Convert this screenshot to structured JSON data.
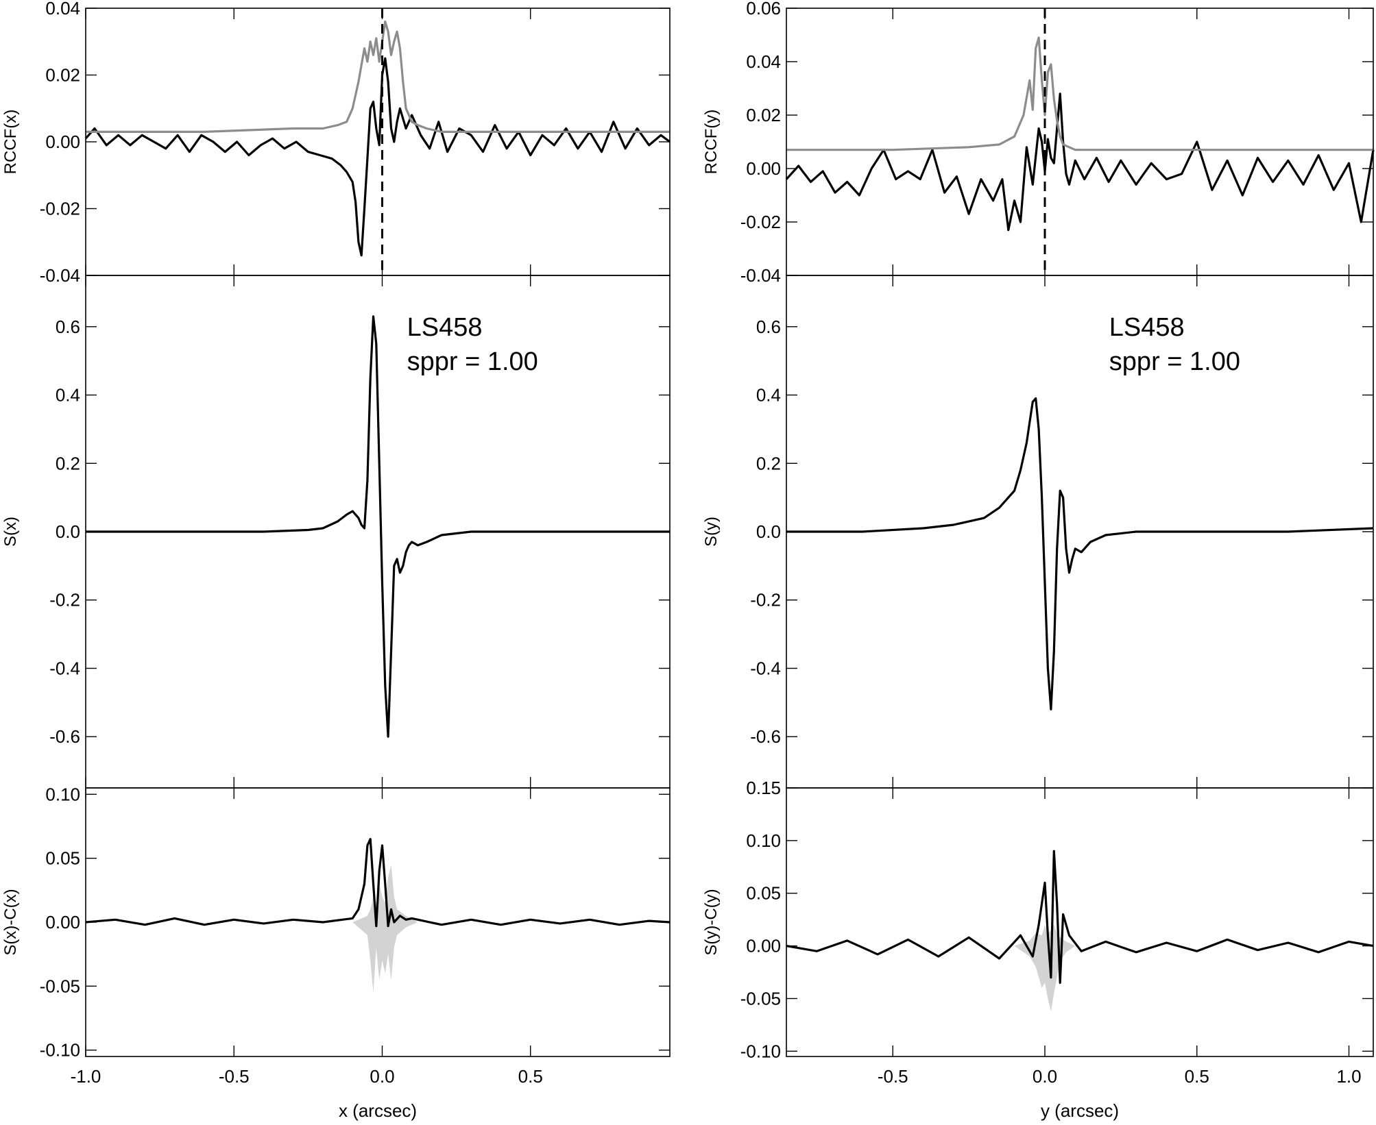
{
  "chart_data": [
    {
      "type": "line",
      "panel": "left-top",
      "ylabel": "RCCF(x)",
      "xlim": [
        -1.0,
        0.97
      ],
      "ylim": [
        -0.04,
        0.04
      ],
      "y_ticks": [
        -0.04,
        -0.02,
        0.0,
        0.02,
        0.04
      ],
      "y_tick_labels": [
        "-0.04",
        "-0.02",
        "0.00",
        "0.02",
        "0.04"
      ],
      "vline_x": 0.0,
      "series": [
        {
          "color": "#000000",
          "x": [
            -1.0,
            -0.97,
            -0.93,
            -0.89,
            -0.85,
            -0.81,
            -0.77,
            -0.73,
            -0.69,
            -0.65,
            -0.61,
            -0.57,
            -0.53,
            -0.49,
            -0.45,
            -0.41,
            -0.37,
            -0.33,
            -0.29,
            -0.25,
            -0.21,
            -0.17,
            -0.14,
            -0.12,
            -0.1,
            -0.09,
            -0.08,
            -0.07,
            -0.06,
            -0.05,
            -0.04,
            -0.03,
            -0.02,
            -0.01,
            0.0,
            0.01,
            0.02,
            0.03,
            0.04,
            0.05,
            0.06,
            0.08,
            0.1,
            0.13,
            0.16,
            0.19,
            0.22,
            0.26,
            0.3,
            0.34,
            0.38,
            0.42,
            0.46,
            0.5,
            0.54,
            0.58,
            0.62,
            0.66,
            0.7,
            0.74,
            0.78,
            0.82,
            0.86,
            0.9,
            0.94,
            0.97
          ],
          "y": [
            0.001,
            0.004,
            -0.001,
            0.002,
            -0.001,
            0.002,
            0.0,
            -0.002,
            0.002,
            -0.003,
            0.002,
            0.0,
            -0.003,
            0.0,
            -0.004,
            -0.001,
            0.001,
            -0.002,
            0.0,
            -0.003,
            -0.004,
            -0.005,
            -0.007,
            -0.009,
            -0.012,
            -0.018,
            -0.03,
            -0.034,
            -0.02,
            -0.005,
            0.01,
            0.012,
            0.004,
            -0.001,
            0.02,
            0.025,
            0.018,
            0.004,
            0.0,
            0.006,
            0.01,
            0.004,
            0.008,
            0.002,
            -0.002,
            0.006,
            -0.003,
            0.004,
            0.002,
            -0.003,
            0.005,
            -0.002,
            0.003,
            -0.004,
            0.002,
            -0.001,
            0.004,
            -0.002,
            0.003,
            -0.003,
            0.006,
            -0.002,
            0.004,
            -0.001,
            0.002,
            0.0
          ]
        },
        {
          "color": "#8c8c8c",
          "x": [
            -1.0,
            -0.6,
            -0.3,
            -0.2,
            -0.15,
            -0.12,
            -0.1,
            -0.08,
            -0.06,
            -0.05,
            -0.04,
            -0.03,
            -0.02,
            -0.01,
            0.0,
            0.01,
            0.02,
            0.03,
            0.04,
            0.05,
            0.06,
            0.07,
            0.08,
            0.1,
            0.12,
            0.15,
            0.2,
            0.4,
            0.7,
            0.97
          ],
          "y": [
            0.003,
            0.003,
            0.004,
            0.004,
            0.005,
            0.006,
            0.01,
            0.018,
            0.028,
            0.024,
            0.03,
            0.026,
            0.031,
            0.024,
            0.03,
            0.036,
            0.033,
            0.026,
            0.03,
            0.033,
            0.028,
            0.018,
            0.01,
            0.006,
            0.005,
            0.004,
            0.003,
            0.003,
            0.003,
            0.003
          ]
        }
      ]
    },
    {
      "type": "line",
      "panel": "right-top",
      "ylabel": "RCCF(y)",
      "xlim": [
        -0.85,
        1.08
      ],
      "ylim": [
        -0.04,
        0.06
      ],
      "y_ticks": [
        -0.04,
        -0.02,
        0.0,
        0.02,
        0.04,
        0.06
      ],
      "y_tick_labels": [
        "-0.04",
        "-0.02",
        "0.00",
        "0.02",
        "0.04",
        "0.06"
      ],
      "vline_x": 0.0,
      "series": [
        {
          "color": "#000000",
          "x": [
            -0.85,
            -0.81,
            -0.77,
            -0.73,
            -0.69,
            -0.65,
            -0.61,
            -0.57,
            -0.53,
            -0.49,
            -0.45,
            -0.41,
            -0.37,
            -0.33,
            -0.29,
            -0.25,
            -0.21,
            -0.17,
            -0.14,
            -0.12,
            -0.1,
            -0.08,
            -0.06,
            -0.04,
            -0.02,
            -0.01,
            0.0,
            0.01,
            0.02,
            0.03,
            0.04,
            0.05,
            0.06,
            0.07,
            0.08,
            0.1,
            0.13,
            0.17,
            0.21,
            0.25,
            0.3,
            0.35,
            0.4,
            0.45,
            0.5,
            0.55,
            0.6,
            0.65,
            0.7,
            0.75,
            0.8,
            0.85,
            0.9,
            0.95,
            1.0,
            1.04,
            1.08
          ],
          "y": [
            -0.004,
            0.001,
            -0.005,
            -0.001,
            -0.009,
            -0.005,
            -0.01,
            0.0,
            0.007,
            -0.004,
            -0.001,
            -0.004,
            0.007,
            -0.009,
            -0.003,
            -0.017,
            -0.004,
            -0.012,
            -0.004,
            -0.023,
            -0.012,
            -0.02,
            0.008,
            -0.006,
            0.015,
            0.01,
            -0.001,
            0.011,
            0.004,
            0.002,
            0.015,
            0.028,
            0.01,
            -0.002,
            -0.006,
            0.003,
            -0.004,
            0.004,
            -0.005,
            0.003,
            -0.006,
            0.002,
            -0.004,
            -0.002,
            0.01,
            -0.008,
            0.003,
            -0.01,
            0.004,
            -0.005,
            0.003,
            -0.006,
            0.005,
            -0.008,
            0.002,
            -0.02,
            0.007
          ]
        },
        {
          "color": "#8c8c8c",
          "x": [
            -0.85,
            -0.5,
            -0.25,
            -0.15,
            -0.1,
            -0.07,
            -0.05,
            -0.04,
            -0.03,
            -0.02,
            -0.01,
            0.0,
            0.01,
            0.02,
            0.03,
            0.04,
            0.05,
            0.06,
            0.08,
            0.1,
            0.13,
            0.2,
            0.5,
            0.8,
            1.08
          ],
          "y": [
            0.007,
            0.007,
            0.008,
            0.009,
            0.012,
            0.02,
            0.033,
            0.022,
            0.045,
            0.049,
            0.033,
            0.02,
            0.036,
            0.039,
            0.026,
            0.018,
            0.012,
            0.009,
            0.008,
            0.007,
            0.007,
            0.007,
            0.007,
            0.007,
            0.007
          ]
        }
      ]
    },
    {
      "type": "line",
      "panel": "left-middle",
      "ylabel": "S(x)",
      "xlim": [
        -1.0,
        0.97
      ],
      "ylim": [
        -0.75,
        0.75
      ],
      "y_ticks": [
        -0.6,
        -0.4,
        -0.2,
        0.0,
        0.2,
        0.4,
        0.6
      ],
      "y_tick_labels": [
        "-0.6",
        "-0.4",
        "-0.2",
        "0.0",
        "0.2",
        "0.4",
        "0.6"
      ],
      "annotation": {
        "name": "LS458",
        "label": "sppr = 1.00"
      },
      "series": [
        {
          "color": "#000000",
          "x": [
            -1.0,
            -0.8,
            -0.6,
            -0.4,
            -0.25,
            -0.2,
            -0.15,
            -0.12,
            -0.1,
            -0.08,
            -0.07,
            -0.06,
            -0.05,
            -0.04,
            -0.03,
            -0.02,
            -0.01,
            0.0,
            0.01,
            0.02,
            0.03,
            0.04,
            0.05,
            0.06,
            0.07,
            0.08,
            0.09,
            0.1,
            0.12,
            0.15,
            0.2,
            0.3,
            0.5,
            0.7,
            0.97
          ],
          "y": [
            0.0,
            0.0,
            0.0,
            0.0,
            0.005,
            0.01,
            0.03,
            0.05,
            0.06,
            0.04,
            0.02,
            0.01,
            0.15,
            0.45,
            0.63,
            0.55,
            0.2,
            -0.15,
            -0.45,
            -0.6,
            -0.35,
            -0.1,
            -0.08,
            -0.12,
            -0.1,
            -0.06,
            -0.04,
            -0.03,
            -0.04,
            -0.03,
            -0.01,
            0.0,
            0.0,
            0.0,
            0.0
          ]
        }
      ]
    },
    {
      "type": "line",
      "panel": "right-middle",
      "ylabel": "S(y)",
      "xlim": [
        -0.85,
        1.08
      ],
      "ylim": [
        -0.75,
        0.75
      ],
      "y_ticks": [
        -0.6,
        -0.4,
        -0.2,
        0.0,
        0.2,
        0.4,
        0.6
      ],
      "y_tick_labels": [
        "-0.6",
        "-0.4",
        "-0.2",
        "0.0",
        "0.2",
        "0.4",
        "0.6"
      ],
      "annotation": {
        "name": "LS458",
        "label": "sppr = 1.00"
      },
      "series": [
        {
          "color": "#000000",
          "x": [
            -0.85,
            -0.6,
            -0.4,
            -0.3,
            -0.2,
            -0.15,
            -0.1,
            -0.08,
            -0.06,
            -0.05,
            -0.04,
            -0.03,
            -0.02,
            -0.01,
            0.0,
            0.01,
            0.02,
            0.03,
            0.04,
            0.05,
            0.06,
            0.07,
            0.08,
            0.09,
            0.1,
            0.12,
            0.15,
            0.2,
            0.3,
            0.5,
            0.8,
            1.08
          ],
          "y": [
            0.0,
            0.0,
            0.01,
            0.02,
            0.04,
            0.07,
            0.12,
            0.18,
            0.26,
            0.32,
            0.38,
            0.39,
            0.3,
            0.1,
            -0.15,
            -0.4,
            -0.52,
            -0.35,
            -0.05,
            0.12,
            0.1,
            -0.05,
            -0.12,
            -0.08,
            -0.05,
            -0.06,
            -0.03,
            -0.01,
            0.0,
            0.0,
            0.0,
            0.01
          ]
        }
      ]
    },
    {
      "type": "line",
      "panel": "left-bottom",
      "ylabel": "S(x)-C(x)",
      "xlabel": "x (arcsec)",
      "xlim": [
        -1.0,
        0.97
      ],
      "ylim": [
        -0.105,
        0.105
      ],
      "y_ticks": [
        -0.1,
        -0.05,
        0.0,
        0.05,
        0.1
      ],
      "y_tick_labels": [
        "-0.10",
        "-0.05",
        "0.00",
        "0.05",
        "0.10"
      ],
      "x_ticks": [
        -1.0,
        -0.5,
        0.0,
        0.5
      ],
      "x_tick_labels": [
        "-1.0",
        "-0.5",
        "0.0",
        "0.5"
      ],
      "series": [
        {
          "color": "#000000",
          "x": [
            -1.0,
            -0.9,
            -0.8,
            -0.7,
            -0.6,
            -0.5,
            -0.4,
            -0.3,
            -0.2,
            -0.1,
            -0.08,
            -0.06,
            -0.05,
            -0.04,
            -0.03,
            -0.02,
            -0.01,
            0.0,
            0.01,
            0.02,
            0.03,
            0.04,
            0.06,
            0.08,
            0.1,
            0.2,
            0.3,
            0.4,
            0.5,
            0.6,
            0.7,
            0.8,
            0.9,
            0.97
          ],
          "y": [
            0.0,
            0.002,
            -0.002,
            0.003,
            -0.002,
            0.002,
            -0.001,
            0.002,
            0.0,
            0.003,
            0.01,
            0.03,
            0.06,
            0.065,
            0.03,
            -0.003,
            0.04,
            0.06,
            0.03,
            -0.003,
            0.01,
            0.0,
            0.005,
            0.002,
            0.003,
            -0.002,
            0.002,
            -0.002,
            0.002,
            -0.001,
            0.002,
            -0.002,
            0.001,
            0.0
          ]
        },
        {
          "color": "#d3d3d3",
          "x": [
            -0.1,
            -0.05,
            -0.04,
            -0.03,
            -0.02,
            -0.01,
            0.0,
            0.01,
            0.02,
            0.03,
            0.04,
            0.05,
            0.08,
            0.12
          ],
          "upper": [
            0.0,
            0.005,
            0.01,
            0.02,
            0.015,
            0.03,
            0.02,
            0.015,
            0.035,
            0.045,
            0.02,
            0.01,
            0.005,
            0.0
          ],
          "lower": [
            0.0,
            -0.01,
            -0.03,
            -0.055,
            -0.02,
            -0.045,
            -0.03,
            -0.04,
            -0.025,
            -0.045,
            -0.02,
            -0.01,
            -0.004,
            0.0
          ]
        }
      ]
    },
    {
      "type": "line",
      "panel": "right-bottom",
      "ylabel": "S(y)-C(y)",
      "xlabel": "y (arcsec)",
      "xlim": [
        -0.85,
        1.08
      ],
      "ylim": [
        -0.105,
        0.15
      ],
      "y_ticks": [
        -0.1,
        -0.05,
        0.0,
        0.05,
        0.1,
        0.15
      ],
      "y_tick_labels": [
        "-0.10",
        "-0.05",
        "0.00",
        "0.05",
        "0.10",
        "0.15"
      ],
      "x_ticks": [
        -0.5,
        0.0,
        0.5,
        1.0
      ],
      "x_tick_labels": [
        "-0.5",
        "0.0",
        "0.5",
        "1.0"
      ],
      "series": [
        {
          "color": "#000000",
          "x": [
            -0.85,
            -0.75,
            -0.65,
            -0.55,
            -0.45,
            -0.35,
            -0.25,
            -0.15,
            -0.08,
            -0.04,
            -0.02,
            0.0,
            0.01,
            0.02,
            0.03,
            0.04,
            0.05,
            0.06,
            0.08,
            0.12,
            0.2,
            0.3,
            0.4,
            0.5,
            0.6,
            0.7,
            0.8,
            0.9,
            1.0,
            1.08
          ],
          "y": [
            0.0,
            -0.005,
            0.005,
            -0.008,
            0.006,
            -0.01,
            0.008,
            -0.012,
            0.01,
            -0.01,
            0.02,
            0.06,
            0.01,
            -0.03,
            0.09,
            0.04,
            -0.035,
            0.03,
            0.01,
            -0.005,
            0.004,
            -0.006,
            0.003,
            -0.005,
            0.006,
            -0.004,
            0.003,
            -0.006,
            0.004,
            0.0
          ]
        },
        {
          "color": "#d3d3d3",
          "x": [
            -0.1,
            -0.05,
            -0.03,
            -0.01,
            0.0,
            0.01,
            0.02,
            0.03,
            0.04,
            0.05,
            0.07,
            0.1
          ],
          "upper": [
            0.0,
            0.005,
            0.012,
            0.01,
            0.02,
            0.012,
            0.015,
            0.02,
            0.012,
            0.008,
            0.004,
            0.0
          ],
          "lower": [
            0.0,
            -0.01,
            -0.02,
            -0.04,
            -0.035,
            -0.05,
            -0.062,
            -0.045,
            -0.03,
            -0.015,
            -0.006,
            0.0
          ]
        }
      ]
    }
  ]
}
